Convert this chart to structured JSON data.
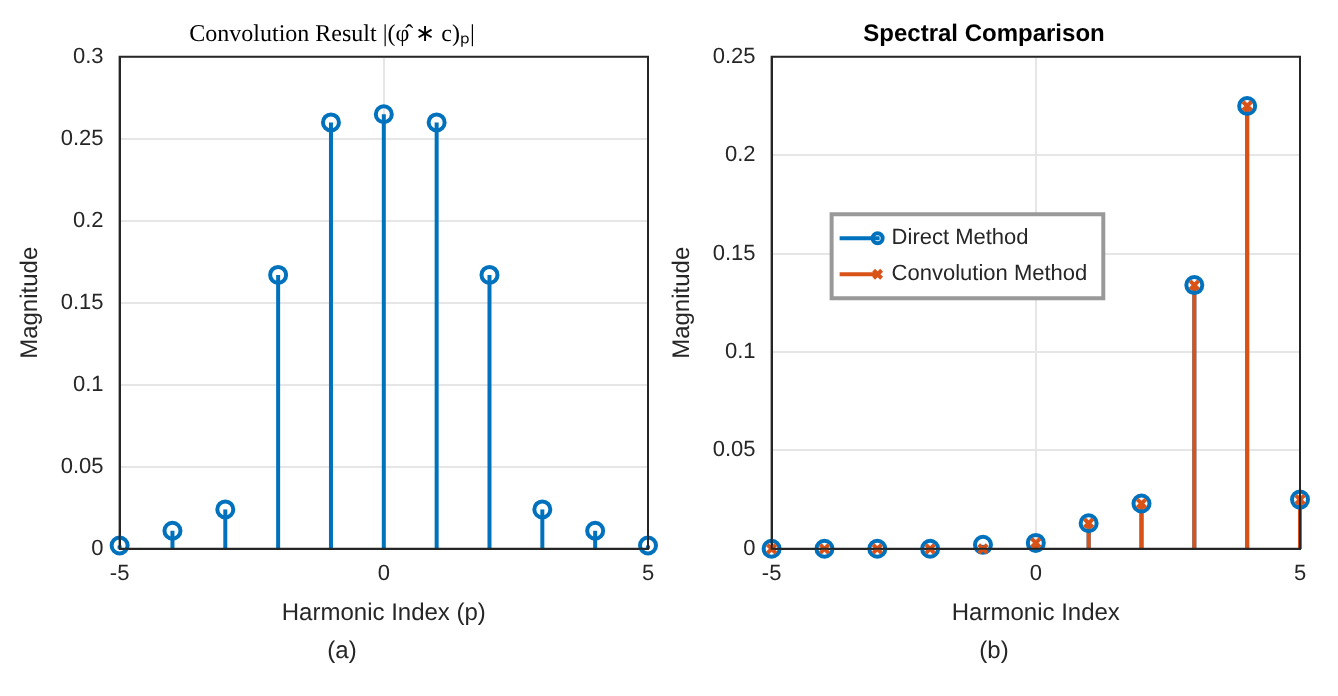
{
  "chart_data": [
    {
      "type": "lollipop",
      "title": "Convolution Result |(φ̂ ∗ c)ₚ|",
      "xlabel": "Harmonic Index (p)",
      "ylabel": "Magnitude",
      "x": [
        -5,
        -4,
        -3,
        -2,
        -1,
        0,
        1,
        2,
        3,
        4,
        5
      ],
      "series": [
        {
          "color": "#0072bd",
          "marker": "circle",
          "values": [
            0.002,
            0.011,
            0.024,
            0.167,
            0.26,
            0.265,
            0.26,
            0.167,
            0.024,
            0.011,
            0.002
          ]
        }
      ],
      "xlim": [
        -5,
        5
      ],
      "xticks": [
        -5,
        0,
        5
      ],
      "ylim": [
        0,
        0.3
      ],
      "yticks": [
        0,
        0.05,
        0.1,
        0.15,
        0.2,
        0.25,
        0.3
      ],
      "grid": true,
      "legend": false,
      "annotations": [
        "(a)"
      ]
    },
    {
      "type": "lollipop",
      "title": "Spectral Comparison",
      "xlabel": "Harmonic Index",
      "ylabel": "Magnitude",
      "x": [
        -5,
        -4,
        -3,
        -2,
        -1,
        0,
        1,
        2,
        3,
        4,
        5
      ],
      "series": [
        {
          "name": "Direct Method",
          "color": "#0072bd",
          "marker": "circle",
          "values": [
            0,
            0,
            0,
            0,
            0.002,
            0.003,
            0.013,
            0.023,
            0.134,
            0.225,
            0.025
          ]
        },
        {
          "name": "Convolution Method",
          "color": "#d95319",
          "marker": "cross",
          "values": [
            0,
            0,
            0,
            0,
            0,
            0.003,
            0.013,
            0.023,
            0.134,
            0.225,
            0.025
          ]
        }
      ],
      "xlim": [
        -5,
        5
      ],
      "xticks": [
        -5,
        0,
        5
      ],
      "ylim": [
        0,
        0.25
      ],
      "yticks": [
        0,
        0.05,
        0.1,
        0.15,
        0.2,
        0.25
      ],
      "grid": true,
      "legend": "left",
      "annotations": [
        "(b)"
      ]
    }
  ]
}
